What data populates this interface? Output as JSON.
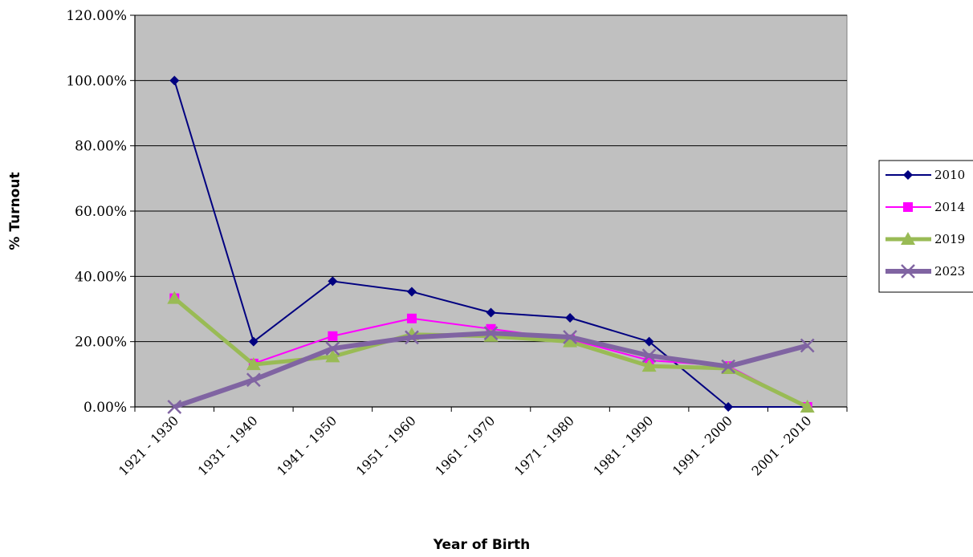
{
  "chart_data": {
    "type": "line",
    "title": "",
    "xlabel": "Year of Birth",
    "ylabel": "% Turnout",
    "categories": [
      "1921 - 1930",
      "1931 - 1940",
      "1941 - 1950",
      "1951 - 1960",
      "1961 - 1970",
      "1971 - 1980",
      "1981 - 1990",
      "1991 - 2000",
      "2001 - 2010"
    ],
    "ylim": [
      0,
      120
    ],
    "y_ticks": [
      "0.00%",
      "20.00%",
      "40.00%",
      "60.00%",
      "80.00%",
      "100.00%",
      "120.00%"
    ],
    "y_tick_values": [
      0,
      20,
      40,
      60,
      80,
      100,
      120
    ],
    "grid": true,
    "legend_position": "right",
    "plot_background": "#c0c0c0",
    "series": [
      {
        "name": "2010",
        "color": "#000080",
        "marker": "diamond",
        "values": [
          100,
          20,
          38.5,
          35.3,
          28.9,
          27.3,
          20,
          0,
          0
        ]
      },
      {
        "name": "2014",
        "color": "#ff00ff",
        "marker": "square",
        "values": [
          33.3,
          13.3,
          21.7,
          27.1,
          23.9,
          20.7,
          14.3,
          12.5,
          0
        ]
      },
      {
        "name": "2019",
        "color": "#99bb55",
        "marker": "triangle",
        "values": [
          33.3,
          13,
          15.4,
          22.2,
          21.7,
          20,
          12.5,
          11.8,
          0
        ]
      },
      {
        "name": "2023",
        "color": "#8064a2",
        "marker": "x",
        "values": [
          0,
          8.3,
          17.9,
          21.3,
          22.6,
          21.4,
          15.7,
          12.4,
          18.8
        ]
      }
    ]
  }
}
